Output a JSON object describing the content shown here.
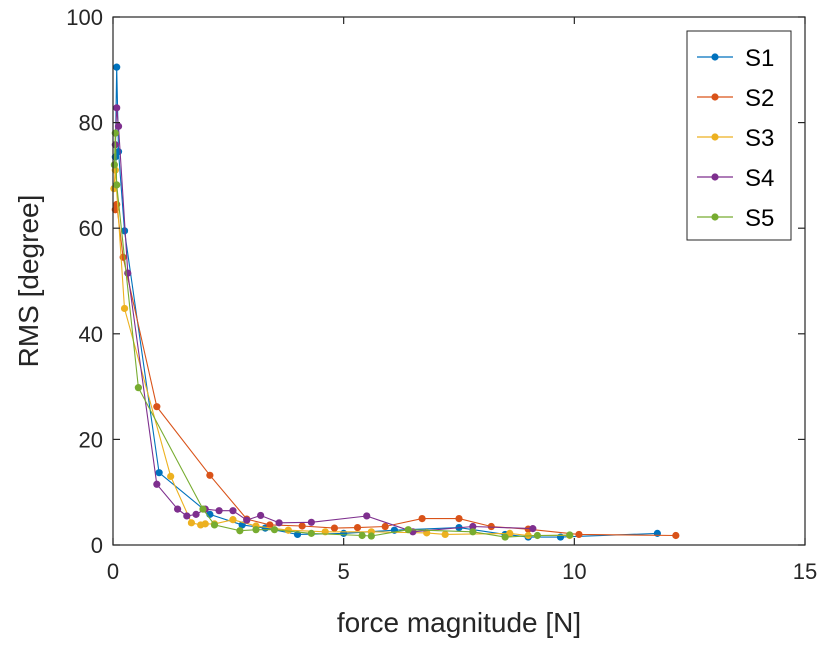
{
  "chart_data": {
    "type": "line",
    "xlabel": "force magnitude [N]",
    "ylabel": "RMS [degree]",
    "xlim": [
      0,
      15
    ],
    "ylim": [
      0,
      100
    ],
    "xticks": [
      0,
      5,
      10,
      15
    ],
    "yticks": [
      0,
      20,
      40,
      60,
      80,
      100
    ],
    "xtick_labels": [
      "0",
      "5",
      "10",
      "15"
    ],
    "ytick_labels": [
      "0",
      "20",
      "40",
      "60",
      "80",
      "100"
    ],
    "grid": false,
    "legend_position": "top-right",
    "series": [
      {
        "name": "S1",
        "color": "#0072BD",
        "points": [
          [
            0.05,
            73.5
          ],
          [
            0.08,
            90.5
          ],
          [
            0.12,
            74.5
          ],
          [
            0.25,
            59.5
          ],
          [
            1.0,
            13.7
          ],
          [
            2.1,
            5.8
          ],
          [
            2.8,
            3.8
          ],
          [
            3.3,
            3.2
          ],
          [
            4.0,
            2.0
          ],
          [
            5.0,
            2.2
          ],
          [
            6.1,
            2.8
          ],
          [
            7.5,
            3.3
          ],
          [
            8.5,
            2.0
          ],
          [
            9.0,
            1.5
          ],
          [
            9.7,
            1.5
          ],
          [
            11.8,
            2.2
          ]
        ]
      },
      {
        "name": "S2",
        "color": "#D95319",
        "points": [
          [
            0.05,
            63.5
          ],
          [
            0.08,
            64.5
          ],
          [
            0.22,
            54.5
          ],
          [
            0.95,
            26.2
          ],
          [
            2.1,
            13.2
          ],
          [
            2.9,
            4.9
          ],
          [
            3.4,
            3.8
          ],
          [
            4.1,
            3.6
          ],
          [
            4.8,
            3.2
          ],
          [
            5.3,
            3.3
          ],
          [
            5.9,
            3.5
          ],
          [
            6.7,
            5.0
          ],
          [
            7.5,
            5.0
          ],
          [
            8.2,
            3.5
          ],
          [
            9.0,
            3.0
          ],
          [
            10.1,
            2.0
          ],
          [
            12.2,
            1.8
          ]
        ]
      },
      {
        "name": "S3",
        "color": "#EDB120",
        "points": [
          [
            0.02,
            67.5
          ],
          [
            0.05,
            71.0
          ],
          [
            0.25,
            44.8
          ],
          [
            1.25,
            13.0
          ],
          [
            1.7,
            4.2
          ],
          [
            1.9,
            3.8
          ],
          [
            2.0,
            4.0
          ],
          [
            2.2,
            4.0
          ],
          [
            2.6,
            4.8
          ],
          [
            3.1,
            3.6
          ],
          [
            3.8,
            2.8
          ],
          [
            4.6,
            2.5
          ],
          [
            5.6,
            2.5
          ],
          [
            6.8,
            2.3
          ],
          [
            7.2,
            2.0
          ],
          [
            8.6,
            2.2
          ],
          [
            9.0,
            1.8
          ],
          [
            9.9,
            1.8
          ]
        ]
      },
      {
        "name": "S4",
        "color": "#7E2F8E",
        "points": [
          [
            0.05,
            75.8
          ],
          [
            0.08,
            82.8
          ],
          [
            0.12,
            79.3
          ],
          [
            0.32,
            51.5
          ],
          [
            0.95,
            11.5
          ],
          [
            1.4,
            6.8
          ],
          [
            1.6,
            5.5
          ],
          [
            1.8,
            5.8
          ],
          [
            2.0,
            6.8
          ],
          [
            2.3,
            6.5
          ],
          [
            2.6,
            6.5
          ],
          [
            2.9,
            4.7
          ],
          [
            3.2,
            5.6
          ],
          [
            3.6,
            4.2
          ],
          [
            4.3,
            4.3
          ],
          [
            5.5,
            5.5
          ],
          [
            6.5,
            2.5
          ],
          [
            7.8,
            3.5
          ],
          [
            9.1,
            3.1
          ]
        ]
      },
      {
        "name": "S5",
        "color": "#77AC30",
        "points": [
          [
            0.03,
            72.0
          ],
          [
            0.05,
            78.0
          ],
          [
            0.08,
            68.2
          ],
          [
            0.55,
            29.8
          ],
          [
            1.95,
            6.8
          ],
          [
            2.2,
            3.8
          ],
          [
            2.75,
            2.7
          ],
          [
            3.1,
            2.9
          ],
          [
            3.5,
            2.9
          ],
          [
            4.3,
            2.2
          ],
          [
            5.4,
            1.8
          ],
          [
            5.6,
            1.7
          ],
          [
            6.4,
            2.9
          ],
          [
            7.8,
            2.5
          ],
          [
            8.5,
            1.5
          ],
          [
            9.2,
            1.8
          ],
          [
            9.9,
            1.9
          ]
        ]
      }
    ]
  }
}
